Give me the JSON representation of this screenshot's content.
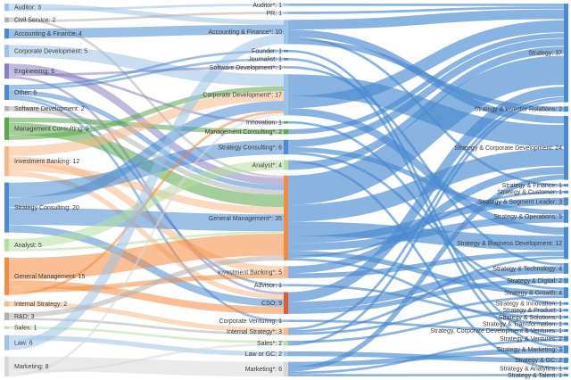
{
  "colors": {
    "blue": "#4a8bd0",
    "orange": "#f58b3d",
    "green": "#5aa84a",
    "gray": "#b0b0b0",
    "lightblue": "#9ec3e6",
    "lightgray": "#d8d8d8",
    "purple": "#8a7fc2",
    "lightgreen": "#b7dfa0",
    "red": "#e05d2b",
    "peach": "#f8b98a"
  },
  "left_nodes": [
    {
      "id": "L_auditor",
      "label": "Auditor: 3",
      "value": 3,
      "color": "lightblue"
    },
    {
      "id": "L_civil",
      "label": "Civil Service: 2",
      "value": 2,
      "color": "gray"
    },
    {
      "id": "L_acct",
      "label": "Accounting & Finance: 4",
      "value": 4,
      "color": "blue"
    },
    {
      "id": "L_corpdev",
      "label": "Corporate Development: 5",
      "value": 5,
      "color": "lightblue"
    },
    {
      "id": "L_eng",
      "label": "Engineering: 6",
      "value": 6,
      "color": "purple"
    },
    {
      "id": "L_other",
      "label": "Other: 6",
      "value": 6,
      "color": "blue"
    },
    {
      "id": "L_softdev",
      "label": "Software Development: 2",
      "value": 2,
      "color": "gray"
    },
    {
      "id": "L_mc",
      "label": "Management Consulting: 9",
      "value": 9,
      "color": "green"
    },
    {
      "id": "L_ib",
      "label": "Investment Banking: 12",
      "value": 12,
      "color": "peach"
    },
    {
      "id": "L_sc",
      "label": "Strategy Consulting: 20",
      "value": 20,
      "color": "blue"
    },
    {
      "id": "L_analyst",
      "label": "Analyst: 5",
      "value": 5,
      "color": "lightgreen"
    },
    {
      "id": "L_gm",
      "label": "General Management: 15",
      "value": 15,
      "color": "orange"
    },
    {
      "id": "L_is",
      "label": "Internal Strategy: 2",
      "value": 2,
      "color": "peach"
    },
    {
      "id": "L_rd",
      "label": "R&D: 3",
      "value": 3,
      "color": "gray"
    },
    {
      "id": "L_sales",
      "label": "Sales: 1",
      "value": 1,
      "color": "lightgreen"
    },
    {
      "id": "L_law",
      "label": "Law: 6",
      "value": 6,
      "color": "lightblue"
    },
    {
      "id": "L_mkt",
      "label": "Marketing: 8",
      "value": 8,
      "color": "lightgray"
    }
  ],
  "mid_nodes": [
    {
      "id": "M_auditor",
      "label": "Auditor*: 1",
      "value": 1,
      "color": "lightblue"
    },
    {
      "id": "M_pr",
      "label": "PR: 1",
      "value": 1,
      "color": "lightblue"
    },
    {
      "id": "M_acct",
      "label": "Accounting & Finance*: 10",
      "value": 10,
      "color": "lightblue"
    },
    {
      "id": "M_founder",
      "label": "Founder: 1",
      "value": 1,
      "color": "blue"
    },
    {
      "id": "M_journalist",
      "label": "Journalist: 1",
      "value": 1,
      "color": "blue"
    },
    {
      "id": "M_softdev",
      "label": "Software Development*: 1",
      "value": 1,
      "color": "gray"
    },
    {
      "id": "M_corpdev",
      "label": "Corporate Development*: 17",
      "value": 17,
      "color": "lightblue"
    },
    {
      "id": "M_innov",
      "label": "Innovation: 1",
      "value": 1,
      "color": "green"
    },
    {
      "id": "M_mc",
      "label": "Management Consulting*: 2",
      "value": 2,
      "color": "green"
    },
    {
      "id": "M_sc",
      "label": "Strategy Consulting*: 6",
      "value": 6,
      "color": "blue"
    },
    {
      "id": "M_analyst",
      "label": "Analyst*: 4",
      "value": 4,
      "color": "lightgreen"
    },
    {
      "id": "M_gm",
      "label": "General Management*: 35",
      "value": 35,
      "color": "orange"
    },
    {
      "id": "M_ib",
      "label": "Investment Banking*: 5",
      "value": 5,
      "color": "peach"
    },
    {
      "id": "M_advisor",
      "label": "Advisor: 1",
      "value": 1,
      "color": "lightblue"
    },
    {
      "id": "M_cso",
      "label": "CSO: 9",
      "value": 9,
      "color": "red"
    },
    {
      "id": "M_cv",
      "label": "Corporate Venturing: 1",
      "value": 1,
      "color": "lightblue"
    },
    {
      "id": "M_is",
      "label": "Internal Strategy*: 3",
      "value": 3,
      "color": "peach"
    },
    {
      "id": "M_sales",
      "label": "Sales*: 2",
      "value": 2,
      "color": "lightgreen"
    },
    {
      "id": "M_law",
      "label": "Law or GC: 2",
      "value": 2,
      "color": "lightblue"
    },
    {
      "id": "M_mkt",
      "label": "Marketing*: 6",
      "value": 6,
      "color": "lightgray"
    }
  ],
  "right_nodes": [
    {
      "id": "R_strategy",
      "label": "Strategy: 37",
      "value": 37
    },
    {
      "id": "R_ir",
      "label": "Strategy & Investor Relations: 2",
      "value": 2
    },
    {
      "id": "R_scd",
      "label": "Strategy & Corporate Development: 24",
      "value": 24
    },
    {
      "id": "R_fin",
      "label": "Strategy & Finance: 1",
      "value": 1
    },
    {
      "id": "R_cust",
      "label": "Strategy & Customer: 1",
      "value": 1
    },
    {
      "id": "R_seg",
      "label": "Strategy & Segment Leader: 3",
      "value": 3
    },
    {
      "id": "R_ops",
      "label": "Strategy & Operations: 5",
      "value": 5
    },
    {
      "id": "R_bd",
      "label": "Strategy & Business Development: 12",
      "value": 12
    },
    {
      "id": "R_tech",
      "label": "Strategy & Technology: 4",
      "value": 4
    },
    {
      "id": "R_dig",
      "label": "Strategy & Digital: 2",
      "value": 2
    },
    {
      "id": "R_growth",
      "label": "Strategy & Growth: 4",
      "value": 4
    },
    {
      "id": "R_innov",
      "label": "Strategy & Innovation: 1",
      "value": 1
    },
    {
      "id": "R_prod",
      "label": "Strategy & Product: 1",
      "value": 1
    },
    {
      "id": "R_sol",
      "label": "Strategy & Solutions: 1",
      "value": 1
    },
    {
      "id": "R_trans",
      "label": "Strategy & Transformation: 1",
      "value": 1
    },
    {
      "id": "R_cdv",
      "label": "Strategy, Corporate Development & Ventures: 1",
      "value": 1
    },
    {
      "id": "R_vent",
      "label": "Strategy & Ventures: 2",
      "value": 2
    },
    {
      "id": "R_mkt",
      "label": "Strategy & Marketing: 3",
      "value": 3
    },
    {
      "id": "R_gc",
      "label": "Strategy & GC: 2",
      "value": 2
    },
    {
      "id": "R_anal",
      "label": "Strategy & Analytics: 1",
      "value": 1
    },
    {
      "id": "R_talent",
      "label": "Strategy & Talent: 1",
      "value": 1
    }
  ],
  "links_left": [
    [
      "L_auditor",
      "M_acct",
      2
    ],
    [
      "L_auditor",
      "M_auditor",
      1
    ],
    [
      "L_civil",
      "M_gm",
      1
    ],
    [
      "L_civil",
      "M_pr",
      1
    ],
    [
      "L_acct",
      "M_acct",
      4
    ],
    [
      "L_corpdev",
      "M_corpdev",
      5
    ],
    [
      "L_eng",
      "M_gm",
      3
    ],
    [
      "L_eng",
      "M_innov",
      1
    ],
    [
      "L_eng",
      "M_softdev",
      1
    ],
    [
      "L_eng",
      "M_cso",
      1
    ],
    [
      "L_other",
      "M_founder",
      1
    ],
    [
      "L_other",
      "M_journalist",
      1
    ],
    [
      "L_other",
      "M_gm",
      2
    ],
    [
      "L_other",
      "M_advisor",
      1
    ],
    [
      "L_other",
      "M_cv",
      1
    ],
    [
      "L_softdev",
      "M_gm",
      2
    ],
    [
      "L_mc",
      "M_mc",
      2
    ],
    [
      "L_mc",
      "M_gm",
      5
    ],
    [
      "L_mc",
      "M_corpdev",
      2
    ],
    [
      "L_ib",
      "M_corpdev",
      4
    ],
    [
      "L_ib",
      "M_ib",
      3
    ],
    [
      "L_ib",
      "M_gm",
      3
    ],
    [
      "L_ib",
      "M_cso",
      2
    ],
    [
      "L_sc",
      "M_sc",
      6
    ],
    [
      "L_sc",
      "M_corpdev",
      4
    ],
    [
      "L_sc",
      "M_gm",
      7
    ],
    [
      "L_sc",
      "M_cso",
      3
    ],
    [
      "L_analyst",
      "M_analyst",
      4
    ],
    [
      "L_analyst",
      "M_gm",
      1
    ],
    [
      "L_gm",
      "M_gm",
      9
    ],
    [
      "L_gm",
      "M_cso",
      3
    ],
    [
      "L_gm",
      "M_ib",
      2
    ],
    [
      "L_gm",
      "M_corpdev",
      1
    ],
    [
      "L_is",
      "M_is",
      2
    ],
    [
      "L_rd",
      "M_gm",
      2
    ],
    [
      "L_rd",
      "M_is",
      1
    ],
    [
      "L_sales",
      "M_sales",
      1
    ],
    [
      "L_law",
      "M_law",
      2
    ],
    [
      "L_law",
      "M_acct",
      4
    ],
    [
      "L_mkt",
      "M_mkt",
      6
    ],
    [
      "L_mkt",
      "M_sales",
      1
    ],
    [
      "L_mkt",
      "M_corpdev",
      1
    ]
  ],
  "links_right": [
    [
      "M_auditor",
      "R_strategy",
      1
    ],
    [
      "M_pr",
      "R_strategy",
      1
    ],
    [
      "M_acct",
      "R_strategy",
      4
    ],
    [
      "M_acct",
      "R_scd",
      3
    ],
    [
      "M_acct",
      "R_fin",
      1
    ],
    [
      "M_acct",
      "R_ir",
      2
    ],
    [
      "M_founder",
      "R_vent",
      1
    ],
    [
      "M_journalist",
      "R_mkt",
      1
    ],
    [
      "M_softdev",
      "R_tech",
      1
    ],
    [
      "M_corpdev",
      "R_scd",
      9
    ],
    [
      "M_corpdev",
      "R_strategy",
      5
    ],
    [
      "M_corpdev",
      "R_bd",
      3
    ],
    [
      "M_innov",
      "R_innov",
      1
    ],
    [
      "M_mc",
      "R_strategy",
      2
    ],
    [
      "M_sc",
      "R_strategy",
      3
    ],
    [
      "M_sc",
      "R_ops",
      2
    ],
    [
      "M_sc",
      "R_growth",
      1
    ],
    [
      "M_analyst",
      "R_anal",
      1
    ],
    [
      "M_analyst",
      "R_strategy",
      3
    ],
    [
      "M_gm",
      "R_strategy",
      12
    ],
    [
      "M_gm",
      "R_scd",
      7
    ],
    [
      "M_gm",
      "R_bd",
      6
    ],
    [
      "M_gm",
      "R_seg",
      3
    ],
    [
      "M_gm",
      "R_ops",
      3
    ],
    [
      "M_gm",
      "R_growth",
      2
    ],
    [
      "M_gm",
      "R_cust",
      1
    ],
    [
      "M_gm",
      "R_trans",
      1
    ],
    [
      "M_ib",
      "R_scd",
      3
    ],
    [
      "M_ib",
      "R_bd",
      2
    ],
    [
      "M_advisor",
      "R_sol",
      1
    ],
    [
      "M_cso",
      "R_strategy",
      4
    ],
    [
      "M_cso",
      "R_tech",
      3
    ],
    [
      "M_cso",
      "R_dig",
      2
    ],
    [
      "M_cv",
      "R_cdv",
      1
    ],
    [
      "M_is",
      "R_strategy",
      1
    ],
    [
      "M_is",
      "R_bd",
      1
    ],
    [
      "M_is",
      "R_growth",
      1
    ],
    [
      "M_sales",
      "R_prod",
      1
    ],
    [
      "M_sales",
      "R_strategy",
      1
    ],
    [
      "M_law",
      "R_gc",
      2
    ],
    [
      "M_mkt",
      "R_mkt",
      2
    ],
    [
      "M_mkt",
      "R_scd",
      2
    ],
    [
      "M_mkt",
      "R_vent",
      1
    ],
    [
      "M_mkt",
      "R_talent",
      1
    ]
  ]
}
